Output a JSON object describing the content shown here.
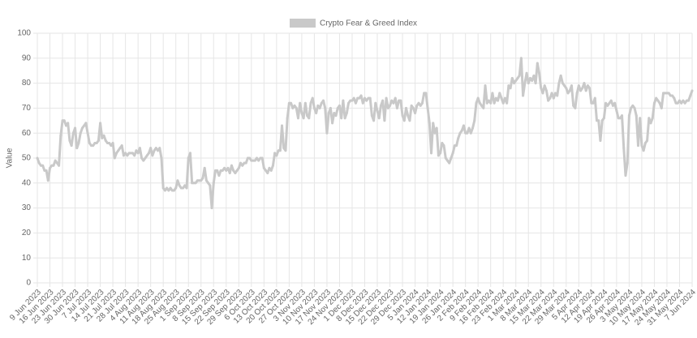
{
  "chart_data": {
    "type": "line",
    "y_label": "Value",
    "legend": "top",
    "grid": true,
    "ylim": [
      0,
      100
    ],
    "yticks": [
      0,
      10,
      20,
      30,
      40,
      50,
      60,
      70,
      80,
      90,
      100
    ],
    "categories": [
      "9 Jun 2023",
      null,
      null,
      null,
      null,
      null,
      null,
      "16 Jun 2023",
      null,
      null,
      null,
      null,
      null,
      null,
      "23 Jun 2023",
      null,
      null,
      null,
      null,
      null,
      null,
      "30 Jun 2023",
      null,
      null,
      null,
      null,
      null,
      null,
      "7 Jul 2023",
      null,
      null,
      null,
      null,
      null,
      null,
      "14 Jul 2023",
      null,
      null,
      null,
      null,
      null,
      null,
      "21 Jul 2023",
      null,
      null,
      null,
      null,
      null,
      null,
      "28 Jul 2023",
      null,
      null,
      null,
      null,
      null,
      null,
      "4 Aug 2023",
      null,
      null,
      null,
      null,
      null,
      null,
      "11 Aug 2023",
      null,
      null,
      null,
      null,
      null,
      null,
      "18 Aug 2023",
      null,
      null,
      null,
      null,
      null,
      null,
      "25 Aug 2023",
      null,
      null,
      null,
      null,
      null,
      null,
      "1 Sep 2023",
      null,
      null,
      null,
      null,
      null,
      null,
      "8 Sep 2023",
      null,
      null,
      null,
      null,
      null,
      null,
      "15 Sep 2023",
      null,
      null,
      null,
      null,
      null,
      null,
      "22 Sep 2023",
      null,
      null,
      null,
      null,
      null,
      null,
      "29 Sep 2023",
      null,
      null,
      null,
      null,
      null,
      null,
      "6 Oct 2023",
      null,
      null,
      null,
      null,
      null,
      null,
      "13 Oct 2023",
      null,
      null,
      null,
      null,
      null,
      null,
      "20 Oct 2023",
      null,
      null,
      null,
      null,
      null,
      null,
      "27 Oct 2023",
      null,
      null,
      null,
      null,
      null,
      null,
      "3 Nov 2023",
      null,
      null,
      null,
      null,
      null,
      null,
      "10 Nov 2023",
      null,
      null,
      null,
      null,
      null,
      null,
      "17 Nov 2023",
      null,
      null,
      null,
      null,
      null,
      null,
      "24 Nov 2023",
      null,
      null,
      null,
      null,
      null,
      null,
      "1 Dec 2023",
      null,
      null,
      null,
      null,
      null,
      null,
      "8 Dec 2023",
      null,
      null,
      null,
      null,
      null,
      null,
      "15 Dec 2023",
      null,
      null,
      null,
      null,
      null,
      null,
      "22 Dec 2023",
      null,
      null,
      null,
      null,
      null,
      null,
      "29 Dec 2023",
      null,
      null,
      null,
      null,
      null,
      null,
      "5 Jan 2024",
      null,
      null,
      null,
      null,
      null,
      null,
      "12 Jan 2024",
      null,
      null,
      null,
      null,
      null,
      null,
      "19 Jan 2024",
      null,
      null,
      null,
      null,
      null,
      null,
      "26 Jan 2024",
      null,
      null,
      null,
      null,
      null,
      null,
      "2 Feb 2024",
      null,
      null,
      null,
      null,
      null,
      null,
      "9 Feb 2024",
      null,
      null,
      null,
      null,
      null,
      null,
      "16 Feb 2024",
      null,
      null,
      null,
      null,
      null,
      null,
      "23 Feb 2024",
      null,
      null,
      null,
      null,
      null,
      null,
      "1 Mar 2024",
      null,
      null,
      null,
      null,
      null,
      null,
      "8 Mar 2024",
      null,
      null,
      null,
      null,
      null,
      null,
      "15 Mar 2024",
      null,
      null,
      null,
      null,
      null,
      null,
      "22 Mar 2024",
      null,
      null,
      null,
      null,
      null,
      null,
      "29 Mar 2024",
      null,
      null,
      null,
      null,
      null,
      null,
      "5 Apr 2024",
      null,
      null,
      null,
      null,
      null,
      null,
      "12 Apr 2024",
      null,
      null,
      null,
      null,
      null,
      null,
      "19 Apr 2024",
      null,
      null,
      null,
      null,
      null,
      null,
      "26 Apr 2024",
      null,
      null,
      null,
      null,
      null,
      null,
      "3 May 2024",
      null,
      null,
      null,
      null,
      null,
      null,
      "10 May 2024",
      null,
      null,
      null,
      null,
      null,
      null,
      "17 May 2024",
      null,
      null,
      null,
      null,
      null,
      null,
      "24 May 2024",
      null,
      null,
      null,
      null,
      null,
      null,
      "31 May 2024",
      null,
      null,
      null,
      null,
      null,
      null,
      "7 Jun 2024"
    ],
    "series": [
      {
        "name": "Crypto Fear & Greed Index",
        "color": "#c9c9c9",
        "values": [
          50,
          48,
          47,
          47,
          45,
          45,
          41,
          46,
          47,
          47,
          49,
          48,
          47,
          59,
          65,
          65,
          63,
          64,
          57,
          55,
          60,
          62,
          54,
          56,
          60,
          62,
          63,
          64,
          60,
          56,
          55,
          55,
          56,
          56,
          57,
          64,
          58,
          59,
          57,
          56,
          56,
          55,
          56,
          50,
          52,
          53,
          54,
          55,
          51,
          52,
          51,
          52,
          52,
          52,
          51,
          53,
          52,
          54,
          50,
          49,
          50,
          51,
          52,
          54,
          51,
          53,
          54,
          53,
          54,
          50,
          38,
          37,
          38,
          37,
          38,
          37,
          37,
          38,
          41,
          39,
          38,
          38,
          39,
          38,
          50,
          52,
          40,
          40,
          40,
          41,
          41,
          41,
          42,
          46,
          41,
          40,
          39,
          30,
          40,
          45,
          45,
          43,
          45,
          45,
          46,
          45,
          46,
          44,
          47,
          45,
          44,
          45,
          46,
          48,
          47,
          48,
          48,
          50,
          50,
          49,
          49,
          49,
          50,
          49,
          50,
          50,
          46,
          45,
          44,
          46,
          45,
          47,
          52,
          51,
          53,
          53,
          63,
          54,
          53,
          66,
          72,
          72,
          70,
          71,
          70,
          66,
          72,
          68,
          66,
          72,
          67,
          66,
          72,
          74,
          70,
          68,
          71,
          70,
          72,
          73,
          70,
          60,
          68,
          70,
          64,
          68,
          67,
          70,
          71,
          66,
          73,
          66,
          68,
          72,
          73,
          73,
          74,
          72,
          74,
          74,
          75,
          72,
          74,
          73,
          74,
          74,
          67,
          65,
          72,
          69,
          66,
          71,
          73,
          65,
          74,
          70,
          71,
          73,
          72,
          74,
          70,
          73,
          73,
          67,
          65,
          70,
          67,
          65,
          71,
          70,
          68,
          71,
          72,
          71,
          72,
          76,
          76,
          70,
          64,
          52,
          64,
          60,
          62,
          51,
          52,
          56,
          55,
          50,
          49,
          48,
          50,
          52,
          55,
          55,
          58,
          60,
          61,
          63,
          60,
          60,
          62,
          60,
          62,
          65,
          72,
          74,
          72,
          71,
          70,
          79,
          72,
          73,
          72,
          76,
          72,
          74,
          73,
          76,
          74,
          72,
          74,
          72,
          79,
          78,
          82,
          80,
          81,
          82,
          83,
          90,
          75,
          80,
          84,
          80,
          82,
          81,
          83,
          80,
          88,
          84,
          78,
          76,
          79,
          77,
          73,
          74,
          76,
          74,
          76,
          75,
          80,
          83,
          80,
          79,
          78,
          76,
          77,
          79,
          71,
          70,
          76,
          79,
          77,
          78,
          80,
          77,
          79,
          78,
          72,
          72,
          74,
          65,
          65,
          57,
          65,
          66,
          72,
          71,
          72,
          73,
          71,
          72,
          69,
          66,
          66,
          67,
          54,
          43,
          48,
          67,
          70,
          71,
          70,
          67,
          55,
          66,
          55,
          53,
          56,
          57,
          66,
          64,
          66,
          72,
          74,
          73,
          72,
          70,
          76,
          76,
          76,
          76,
          75,
          75,
          74,
          72,
          72,
          73,
          72,
          73,
          72,
          73,
          73,
          75,
          77
        ]
      }
    ]
  }
}
